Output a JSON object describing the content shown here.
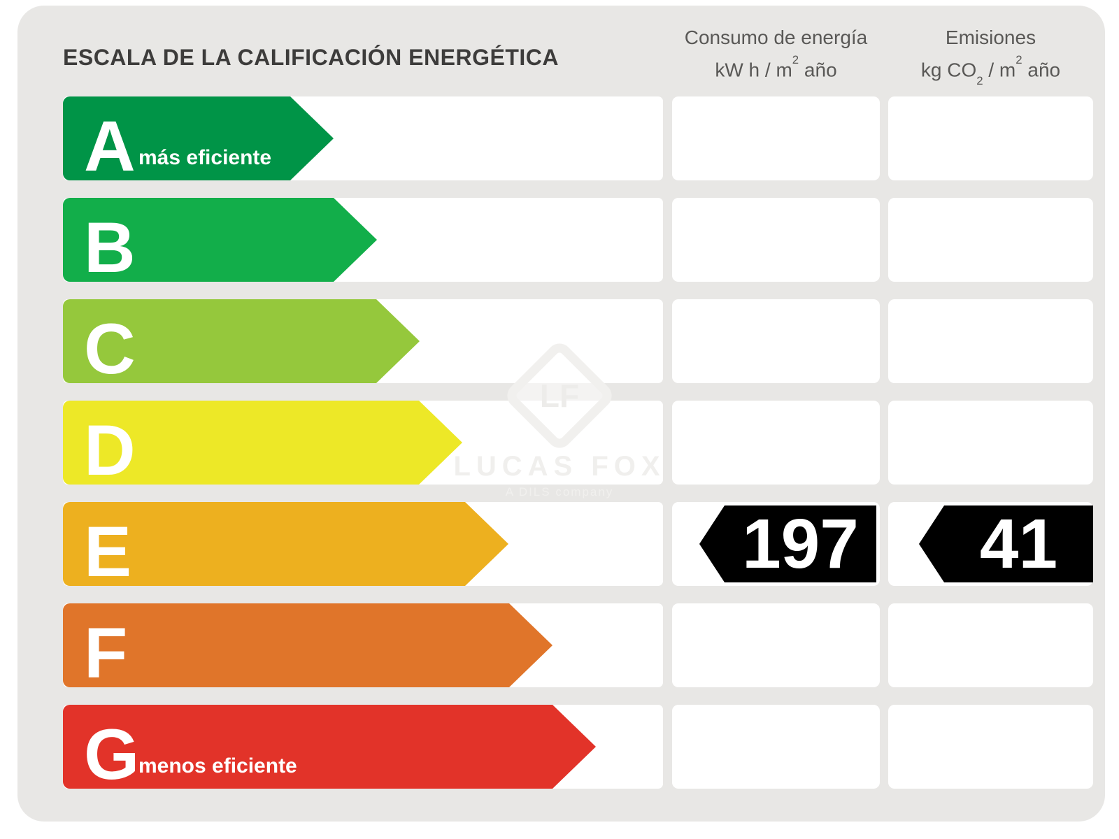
{
  "title": "ESCALA DE LA CALIFICACIÓN ENERGÉTICA",
  "headers": {
    "consumo": {
      "title": "Consumo de energía",
      "unit_pre": "kW h / m",
      "unit_sup": "2",
      "unit_post": " año"
    },
    "emisiones": {
      "title": "Emisiones",
      "unit_pre": "kg CO",
      "unit_sub": "2",
      "unit_mid": " / m",
      "unit_sup": "2",
      "unit_post": " año"
    }
  },
  "scale": {
    "rows": [
      {
        "grade": "A",
        "label": "más eficiente",
        "color": "#009447",
        "bar_rect_width": 325
      },
      {
        "grade": "B",
        "label": "",
        "color": "#12ae4a",
        "bar_rect_width": 387
      },
      {
        "grade": "C",
        "label": "",
        "color": "#95c83c",
        "bar_rect_width": 448
      },
      {
        "grade": "D",
        "label": "",
        "color": "#ede827",
        "bar_rect_width": 509
      },
      {
        "grade": "E",
        "label": "",
        "color": "#edb01f",
        "bar_rect_width": 575
      },
      {
        "grade": "F",
        "label": "",
        "color": "#e0752a",
        "bar_rect_width": 638
      },
      {
        "grade": "G",
        "label": "menos eficiente",
        "color": "#e23329",
        "bar_rect_width": 700
      }
    ]
  },
  "values": {
    "grade": "E",
    "consumo": "197",
    "emisiones": "41",
    "arrow_color": "#000000",
    "text_color": "#ffffff"
  },
  "watermark": {
    "monogram": "LF",
    "name": "LUCAS FOX",
    "tagline": "A DILS company"
  },
  "palette": {
    "page_bg": "#ffffff",
    "card_bg": "#e8e7e5",
    "cell_bg": "#ffffff",
    "title_color": "#3d3c3b",
    "header_color": "#595856"
  },
  "chart_data": {
    "type": "bar",
    "title": "ESCALA DE LA CALIFICACIÓN ENERGÉTICA",
    "orientation": "horizontal",
    "categories": [
      "A",
      "B",
      "C",
      "D",
      "E",
      "F",
      "G"
    ],
    "values": [
      385,
      447,
      508,
      569,
      635,
      698,
      760
    ],
    "values_note": "ordinal bar lengths in px, A shortest to G longest",
    "colors": [
      "#009447",
      "#12ae4a",
      "#95c83c",
      "#ede827",
      "#edb01f",
      "#e0752a",
      "#e23329"
    ],
    "annotations": {
      "A": "más eficiente",
      "G": "menos eficiente"
    },
    "rating": "E",
    "metrics": [
      {
        "name": "Consumo de energía",
        "unit": "kW h / m2 año",
        "value": 197,
        "grade": "E"
      },
      {
        "name": "Emisiones",
        "unit": "kg CO2 / m2 año",
        "value": 41,
        "grade": "E"
      }
    ],
    "legend_position": "none",
    "grid": false
  }
}
